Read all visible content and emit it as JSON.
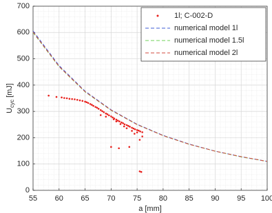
{
  "chart_data": {
    "type": "scatter",
    "xlabel": "a [mm]",
    "ylabel": {
      "main": "U",
      "sub": "cyc",
      "unit": "[mJ]"
    },
    "xlim": [
      55,
      100
    ],
    "ylim": [
      0,
      700
    ],
    "xticks": [
      55,
      60,
      65,
      70,
      75,
      80,
      85,
      90,
      95,
      100
    ],
    "yticks": [
      0,
      100,
      200,
      300,
      400,
      500,
      600,
      700
    ],
    "grid": true,
    "minor_grid": true,
    "legend": "upper right",
    "series": [
      {
        "name": "1l; C-002-D",
        "color": "#e8201c",
        "mode": "markers",
        "x": [
          58,
          59.5,
          60.5,
          61,
          61.5,
          62,
          62.5,
          63,
          63.5,
          64,
          64.5,
          65,
          65.3,
          65.6,
          66,
          66.3,
          66.6,
          67,
          67.3,
          67.6,
          68,
          68.3,
          68.6,
          69,
          69.3,
          69.6,
          70,
          70.3,
          70.6,
          71,
          71.3,
          71.6,
          72,
          72.3,
          72.6,
          73,
          73.3,
          73.6,
          74,
          74.3,
          74.6,
          75,
          75.3,
          75.6,
          76,
          68,
          69,
          70.5,
          71,
          71.8,
          72.5,
          73,
          74,
          75,
          70,
          71.5,
          73.5,
          75.5,
          75.8,
          76,
          75.5,
          74.5
        ],
        "values": [
          360,
          355,
          353,
          351,
          350,
          348,
          347,
          346,
          344,
          342,
          340,
          337,
          335,
          332,
          328,
          325,
          321,
          317,
          314,
          310,
          305,
          301,
          297,
          292,
          289,
          285,
          281,
          277,
          273,
          269,
          265,
          262,
          258,
          255,
          251,
          248,
          245,
          242,
          238,
          235,
          232,
          229,
          227,
          224,
          221,
          286,
          280,
          270,
          262,
          252,
          243,
          236,
          226,
          220,
          165,
          160,
          165,
          72,
          70,
          205,
          192,
          215
        ]
      },
      {
        "name": "numerical model 1l",
        "color": "#3c5bd6",
        "mode": "dashed",
        "x": [
          55,
          60,
          65,
          70,
          75,
          80,
          85,
          90,
          95,
          100
        ],
        "values": [
          606,
          474,
          377,
          306,
          251,
          209,
          176,
          149,
          128,
          110
        ]
      },
      {
        "name": "numerical model 1.5l",
        "color": "#6fd15a",
        "mode": "dashed",
        "x": [
          55,
          60,
          65,
          70,
          75,
          80,
          85,
          90,
          95,
          100
        ],
        "values": [
          600,
          470,
          374,
          304,
          250,
          208,
          175,
          149,
          127,
          110
        ]
      },
      {
        "name": "numerical model 2l",
        "color": "#d24a3c",
        "mode": "dashed",
        "x": [
          55,
          60,
          65,
          70,
          75,
          80,
          85,
          90,
          95,
          100
        ],
        "values": [
          602,
          471,
          375,
          305,
          250,
          208,
          175,
          149,
          128,
          110
        ]
      }
    ]
  }
}
